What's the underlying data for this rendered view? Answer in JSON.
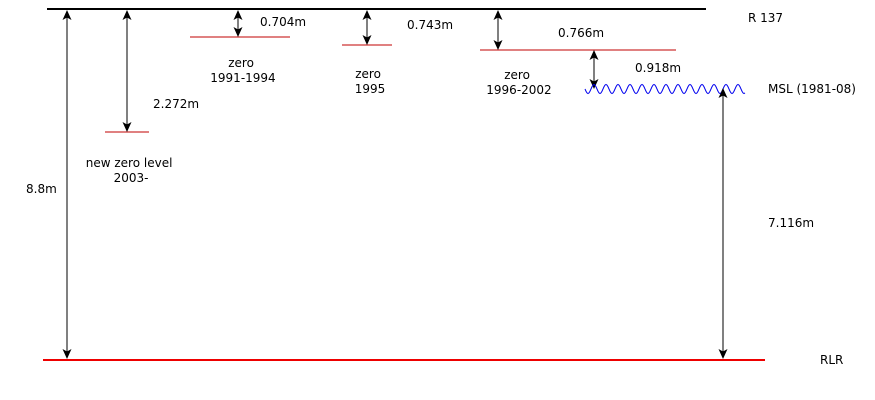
{
  "colors": {
    "benchmark_line": "#000000",
    "zero_level": "#c00000",
    "msl_wave": "#0000ee",
    "rlr_line": "#ee0000",
    "arrow": "#000000"
  },
  "benchmark": {
    "label": "R 137"
  },
  "msl": {
    "label": "MSL (1981-08)"
  },
  "rlr": {
    "label": "RLR"
  },
  "zero_levels": [
    {
      "line1": "new zero level",
      "line2": "2003-",
      "offset": "2.272m"
    },
    {
      "line1": "zero",
      "line2": "1991-1994",
      "offset": "0.704m"
    },
    {
      "line1": "zero",
      "line2": "1995",
      "offset": "0.743m"
    },
    {
      "line1": "zero",
      "line2": "1996-2002",
      "offset": "0.766m"
    }
  ],
  "measurements": {
    "benchmark_to_rlr": "8.8m",
    "zero_to_msl": "0.918m",
    "msl_to_rlr": "7.116m"
  }
}
